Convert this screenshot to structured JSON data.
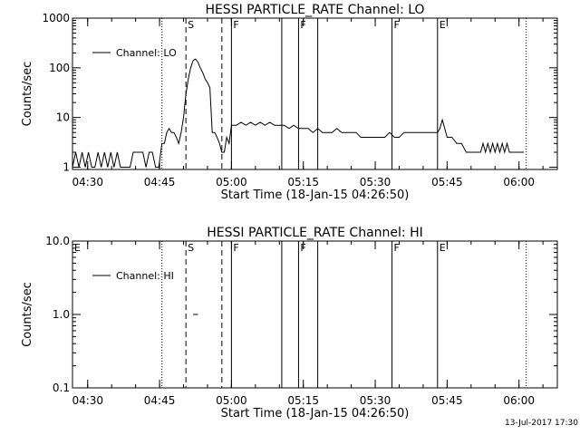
{
  "footer_timestamp": "13-Jul-2017 17:30",
  "chart_data": [
    {
      "type": "line",
      "title": "HESSI PARTICLE_RATE Channel: LO",
      "xlabel": "Start Time (18-Jan-15 04:26:50)",
      "ylabel": "Counts/sec",
      "y_scale": "log",
      "ylim": [
        0.9,
        1000
      ],
      "y_ticks": [
        1,
        10,
        100,
        1000
      ],
      "y_tick_labels": [
        "1",
        "10",
        "100",
        "1000"
      ],
      "xlim": [
        "04:26:50",
        "06:08:00"
      ],
      "x_ticks": [
        "04:30",
        "04:45",
        "05:00",
        "05:15",
        "05:30",
        "05:45",
        "06:00"
      ],
      "grid": false,
      "legend": {
        "position": "top-left",
        "entries": [
          {
            "label": "Channel: LO"
          }
        ]
      },
      "markers": [
        {
          "time": "04:45:30",
          "style": "dotted",
          "label": ""
        },
        {
          "time": "04:50:30",
          "style": "dashed",
          "label": "S"
        },
        {
          "time": "04:58:00",
          "style": "dashed",
          "label": ""
        },
        {
          "time": "05:00:00",
          "style": "solid",
          "label": "F"
        },
        {
          "time": "05:10:30",
          "style": "solid",
          "label": ""
        },
        {
          "time": "05:14:00",
          "style": "solid",
          "label": "F"
        },
        {
          "time": "05:18:00",
          "style": "solid",
          "label": ""
        },
        {
          "time": "05:33:30",
          "style": "solid",
          "label": "F"
        },
        {
          "time": "05:43:00",
          "style": "solid",
          "label": "E"
        },
        {
          "time": "06:01:30",
          "style": "dotted",
          "label": ""
        }
      ],
      "series": [
        {
          "time": [
            "04:26:50",
            "04:27:30",
            "04:28:10",
            "04:28:50",
            "04:29:30",
            "04:30:10",
            "04:30:50",
            "04:31:30",
            "04:32:10",
            "04:32:50",
            "04:33:30",
            "04:34:10",
            "04:34:50",
            "04:35:30",
            "04:36:10",
            "04:36:50",
            "04:37:30",
            "04:38:10",
            "04:38:50",
            "04:39:30",
            "04:40:10",
            "04:40:50",
            "04:41:30",
            "04:42:10",
            "04:42:50",
            "04:43:30",
            "04:44:10",
            "04:44:50",
            "04:45:30",
            "04:46:00",
            "04:46:30",
            "04:47:00",
            "04:47:30",
            "04:48:00",
            "04:48:30",
            "04:49:00",
            "04:49:30",
            "04:50:00",
            "04:50:30",
            "04:51:00",
            "04:51:30",
            "04:52:00",
            "04:52:30",
            "04:53:00",
            "04:53:30",
            "04:54:00",
            "04:54:30",
            "04:55:00",
            "04:55:30",
            "04:56:00",
            "04:56:30",
            "04:57:00",
            "04:57:30",
            "04:58:00",
            "04:58:30",
            "04:59:00",
            "04:59:30",
            "05:00:00",
            "05:01:00",
            "05:02:00",
            "05:03:00",
            "05:04:00",
            "05:05:00",
            "05:06:00",
            "05:07:00",
            "05:08:00",
            "05:09:00",
            "05:10:00",
            "05:11:00",
            "05:12:00",
            "05:13:00",
            "05:14:00",
            "05:15:00",
            "05:16:00",
            "05:17:00",
            "05:18:00",
            "05:19:00",
            "05:20:00",
            "05:21:00",
            "05:22:00",
            "05:23:00",
            "05:24:00",
            "05:25:00",
            "05:26:00",
            "05:27:00",
            "05:28:00",
            "05:29:00",
            "05:30:00",
            "05:31:00",
            "05:32:00",
            "05:33:00",
            "05:34:00",
            "05:35:00",
            "05:36:00",
            "05:37:00",
            "05:38:00",
            "05:39:00",
            "05:40:00",
            "05:41:00",
            "05:42:00",
            "05:43:00",
            "05:43:30",
            "05:44:00",
            "05:45:00",
            "05:46:00",
            "05:47:00",
            "05:48:00",
            "05:49:00",
            "05:50:00",
            "05:51:00",
            "05:52:00",
            "05:52:30",
            "05:53:00",
            "05:53:30",
            "05:54:00",
            "05:54:30",
            "05:55:00",
            "05:55:30",
            "05:56:00",
            "05:56:30",
            "05:57:00",
            "05:57:30",
            "05:58:00",
            "05:59:00",
            "06:00:00",
            "06:01:00"
          ],
          "values": [
            1,
            2,
            1,
            2,
            1,
            2,
            1,
            1,
            2,
            1,
            2,
            1,
            2,
            1,
            2,
            1,
            1,
            1,
            1,
            2,
            2,
            2,
            2,
            1,
            2,
            2,
            1,
            1,
            3,
            3,
            5,
            6,
            5,
            5,
            4,
            3,
            5,
            10,
            30,
            60,
            100,
            140,
            150,
            130,
            100,
            80,
            60,
            50,
            40,
            5,
            5,
            4,
            3,
            2,
            2,
            4,
            3,
            7,
            7,
            8,
            7,
            8,
            7,
            8,
            7,
            8,
            7,
            7,
            7,
            6,
            7,
            6,
            6,
            6,
            5,
            6,
            5,
            5,
            5,
            6,
            5,
            5,
            5,
            5,
            4,
            4,
            4,
            4,
            4,
            4,
            5,
            4,
            4,
            5,
            5,
            5,
            5,
            5,
            5,
            5,
            5,
            6,
            9,
            4,
            4,
            3,
            3,
            2,
            2,
            2,
            2,
            3,
            2,
            3,
            2,
            3,
            2,
            3,
            2,
            3,
            2,
            3,
            2,
            2,
            2,
            2
          ]
        }
      ]
    },
    {
      "type": "line",
      "title": "HESSI PARTICLE_RATE Channel: HI",
      "xlabel": "Start Time (18-Jan-15 04:26:50)",
      "ylabel": "Counts/sec",
      "y_scale": "log",
      "ylim": [
        0.1,
        10
      ],
      "y_ticks": [
        0.1,
        1,
        10
      ],
      "y_tick_labels": [
        "0.1",
        "1.0",
        "10.0"
      ],
      "xlim": [
        "04:26:50",
        "06:08:00"
      ],
      "x_ticks": [
        "04:30",
        "04:45",
        "05:00",
        "05:15",
        "05:30",
        "05:45",
        "06:00"
      ],
      "grid": false,
      "legend": {
        "position": "top-left",
        "entries": [
          {
            "label": "Channel: HI"
          }
        ]
      },
      "markers": [
        {
          "time": "04:26:50",
          "style": "none",
          "label": "E"
        },
        {
          "time": "04:45:30",
          "style": "dotted",
          "label": ""
        },
        {
          "time": "04:50:30",
          "style": "dashed",
          "label": "S"
        },
        {
          "time": "04:58:00",
          "style": "dashed",
          "label": ""
        },
        {
          "time": "05:00:00",
          "style": "solid",
          "label": "F"
        },
        {
          "time": "05:10:30",
          "style": "solid",
          "label": ""
        },
        {
          "time": "05:14:00",
          "style": "solid",
          "label": "F"
        },
        {
          "time": "05:18:00",
          "style": "solid",
          "label": ""
        },
        {
          "time": "05:33:30",
          "style": "solid",
          "label": "F"
        },
        {
          "time": "05:43:00",
          "style": "solid",
          "label": "E"
        },
        {
          "time": "06:01:30",
          "style": "dotted",
          "label": ""
        }
      ],
      "series": [
        {
          "time": [
            "04:52:00",
            "04:53:00"
          ],
          "values": [
            1,
            1
          ]
        }
      ]
    }
  ]
}
